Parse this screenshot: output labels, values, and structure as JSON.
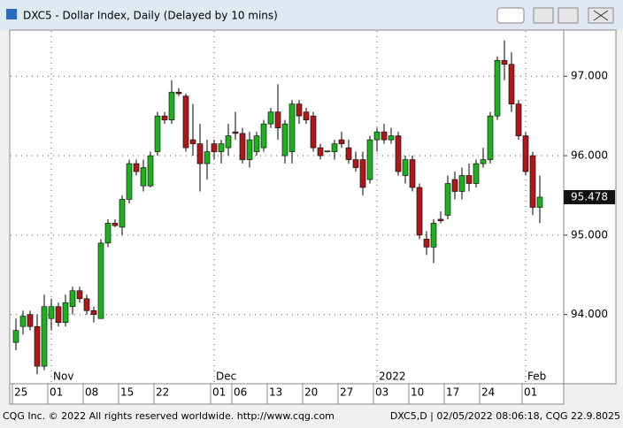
{
  "window": {
    "title": "DXC5 - Dollar Index, Daily (Delayed by 10 mins)"
  },
  "footer": {
    "left": "CQG Inc. © 2022 All rights reserved worldwide. http://www.cqg.com",
    "right": "DXC5,D | 02/05/2022 08:06:18, CQG 22.9.8025"
  },
  "chart_data": {
    "type": "candlestick",
    "categories": [
      "25",
      null,
      null,
      null,
      null,
      "01",
      null,
      null,
      null,
      null,
      "08",
      null,
      null,
      null,
      null,
      "15",
      null,
      null,
      null,
      null,
      "22",
      null,
      null,
      null,
      null,
      null,
      null,
      null,
      "01",
      null,
      null,
      "06",
      null,
      null,
      null,
      null,
      "13",
      null,
      null,
      null,
      null,
      "20",
      null,
      null,
      null,
      null,
      "27",
      null,
      null,
      null,
      null,
      "03",
      null,
      null,
      null,
      null,
      "10",
      null,
      null,
      null,
      null,
      "17",
      null,
      null,
      null,
      null,
      "24",
      null,
      null,
      null,
      null,
      null,
      "01",
      null,
      null
    ],
    "month_labels": [
      {
        "index": 5,
        "label": "Nov"
      },
      {
        "index": 28,
        "label": "Dec"
      },
      {
        "index": 51,
        "label": "2022"
      },
      {
        "index": 72,
        "label": "Feb"
      }
    ],
    "open": [
      93.65,
      93.85,
      94.0,
      93.85,
      93.35,
      93.95,
      94.1,
      93.9,
      94.1,
      94.3,
      94.2,
      94.05,
      93.95,
      94.9,
      95.15,
      95.1,
      95.45,
      95.9,
      95.62,
      95.62,
      96.05,
      96.5,
      96.45,
      96.8,
      96.75,
      96.2,
      96.15,
      95.9,
      96.15,
      96.05,
      96.1,
      96.3,
      96.28,
      95.95,
      96.05,
      96.1,
      96.4,
      96.55,
      96.0,
      96.05,
      96.65,
      96.55,
      96.5,
      96.1,
      96.05,
      96.05,
      96.2,
      96.1,
      95.95,
      95.95,
      95.7,
      96.2,
      96.3,
      96.2,
      96.25,
      95.75,
      95.95,
      95.6,
      94.95,
      94.85,
      95.2,
      95.25,
      95.7,
      95.55,
      95.75,
      95.65,
      95.9,
      95.95,
      96.5,
      97.2,
      97.15,
      96.65,
      96.25,
      96.0,
      95.35
    ],
    "high": [
      93.95,
      94.05,
      94.05,
      94.0,
      94.25,
      94.2,
      94.15,
      94.25,
      94.35,
      94.35,
      94.25,
      94.1,
      94.95,
      95.2,
      95.2,
      95.5,
      95.95,
      95.95,
      95.95,
      96.05,
      96.55,
      96.55,
      96.95,
      96.85,
      96.78,
      96.65,
      96.4,
      96.2,
      96.2,
      96.2,
      96.4,
      96.55,
      96.35,
      96.3,
      96.3,
      96.45,
      96.6,
      96.9,
      96.45,
      96.7,
      96.7,
      96.6,
      96.55,
      96.15,
      96.06,
      96.2,
      96.3,
      96.2,
      96.05,
      96.05,
      96.25,
      96.35,
      96.4,
      96.35,
      96.3,
      96.0,
      96.0,
      95.65,
      95.05,
      95.2,
      95.3,
      95.75,
      95.8,
      95.85,
      95.9,
      95.95,
      96.1,
      96.55,
      97.25,
      97.45,
      97.3,
      96.7,
      96.3,
      96.05,
      95.75
    ],
    "low": [
      93.55,
      93.75,
      93.8,
      93.25,
      93.3,
      93.8,
      93.85,
      93.85,
      94.0,
      94.15,
      94.0,
      93.9,
      93.95,
      94.85,
      95.1,
      95.0,
      95.4,
      95.75,
      95.55,
      95.6,
      96.0,
      96.4,
      96.4,
      96.75,
      96.05,
      96.0,
      95.55,
      95.7,
      95.95,
      95.9,
      96.0,
      96.2,
      95.9,
      95.85,
      96.0,
      96.05,
      96.35,
      96.2,
      95.9,
      95.9,
      96.4,
      96.4,
      96.05,
      95.95,
      96.04,
      95.95,
      96.1,
      95.9,
      95.8,
      95.5,
      95.65,
      96.05,
      96.15,
      96.15,
      95.75,
      95.65,
      95.55,
      94.95,
      94.75,
      94.65,
      95.15,
      95.2,
      95.45,
      95.45,
      95.55,
      95.6,
      95.85,
      95.9,
      96.45,
      96.95,
      96.55,
      96.2,
      95.75,
      95.25,
      95.15
    ],
    "close": [
      93.8,
      93.98,
      93.85,
      93.35,
      94.1,
      94.1,
      93.9,
      94.15,
      94.3,
      94.2,
      94.05,
      94.0,
      94.9,
      95.15,
      95.12,
      95.45,
      95.9,
      95.8,
      95.85,
      96.0,
      96.5,
      96.45,
      96.8,
      96.78,
      96.1,
      96.15,
      95.9,
      96.05,
      96.05,
      96.15,
      96.25,
      96.28,
      95.95,
      96.2,
      96.25,
      96.4,
      96.55,
      96.35,
      96.4,
      96.65,
      96.5,
      96.45,
      96.1,
      96.0,
      96.06,
      96.15,
      96.15,
      95.95,
      95.85,
      95.6,
      96.2,
      96.3,
      96.2,
      96.25,
      95.8,
      95.95,
      95.6,
      95.0,
      94.85,
      95.15,
      95.18,
      95.65,
      95.55,
      95.75,
      95.65,
      95.9,
      95.95,
      96.5,
      97.2,
      97.15,
      96.65,
      96.25,
      95.8,
      95.35,
      95.478
    ],
    "up_color": "#1db11d",
    "down_color": "#b01818",
    "last_price": 95.478,
    "ylim": [
      93.14,
      97.57
    ],
    "yticks": [
      {
        "value": 94,
        "label": "94.000"
      },
      {
        "value": 95,
        "label": "95.000"
      },
      {
        "value": 96,
        "label": "96.000"
      },
      {
        "value": 97,
        "label": "97.000"
      }
    ],
    "grid": true
  }
}
